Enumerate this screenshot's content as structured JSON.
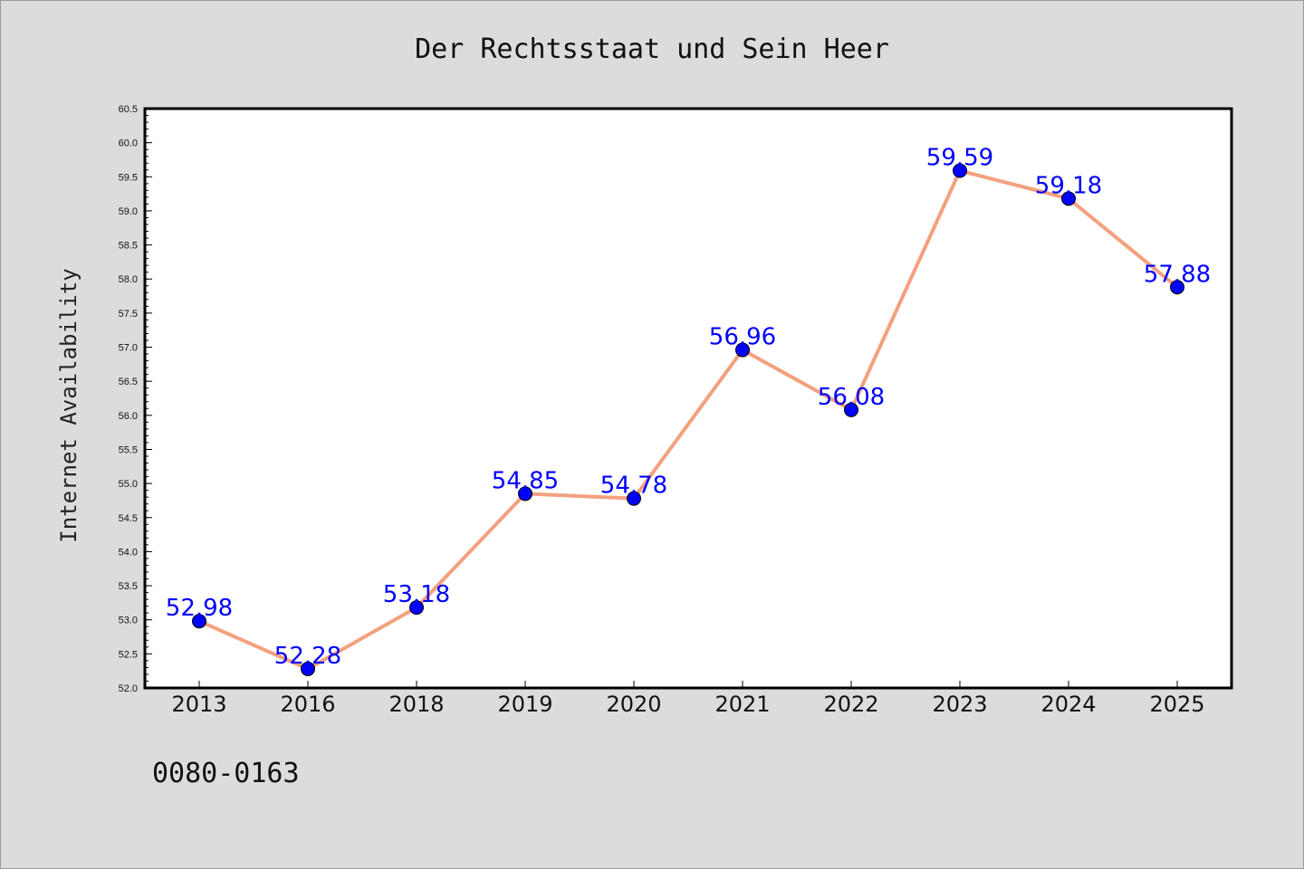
{
  "chart_data": {
    "type": "line",
    "title": "Der Rechtsstaat und Sein Heer",
    "ylabel": "Internet Availability",
    "xlabel": "",
    "categories": [
      "2013",
      "2016",
      "2018",
      "2019",
      "2020",
      "2021",
      "2022",
      "2023",
      "2024",
      "2025"
    ],
    "series": [
      {
        "values": [
          52.98,
          52.28,
          53.18,
          54.85,
          54.78,
          56.96,
          56.08,
          59.59,
          59.18,
          57.88
        ],
        "line_color": "#f4a07e",
        "marker_color": "#0000ff"
      }
    ],
    "data_labels": [
      "52.98",
      "52.28",
      "53.18",
      "54.85",
      "54.78",
      "56.96",
      "56.08",
      "59.59",
      "59.18",
      "57.88"
    ],
    "ylim": [
      52.0,
      60.5
    ],
    "ytick_labels": [
      "52.0",
      "52.5",
      "53.0",
      "53.5",
      "54.0",
      "54.5",
      "55.0",
      "55.5",
      "56.0",
      "56.5",
      "57.0",
      "57.5",
      "58.0",
      "58.5",
      "59.0",
      "59.5",
      "60.0",
      "60.5"
    ],
    "grid": false,
    "legend": "none"
  },
  "footnote": "0080-0163",
  "colors": {
    "background": "#dcdcdc",
    "plot_background": "#ffffff",
    "line": "#f4a07e",
    "marker": "#0000ff",
    "label": "#0000ff"
  }
}
